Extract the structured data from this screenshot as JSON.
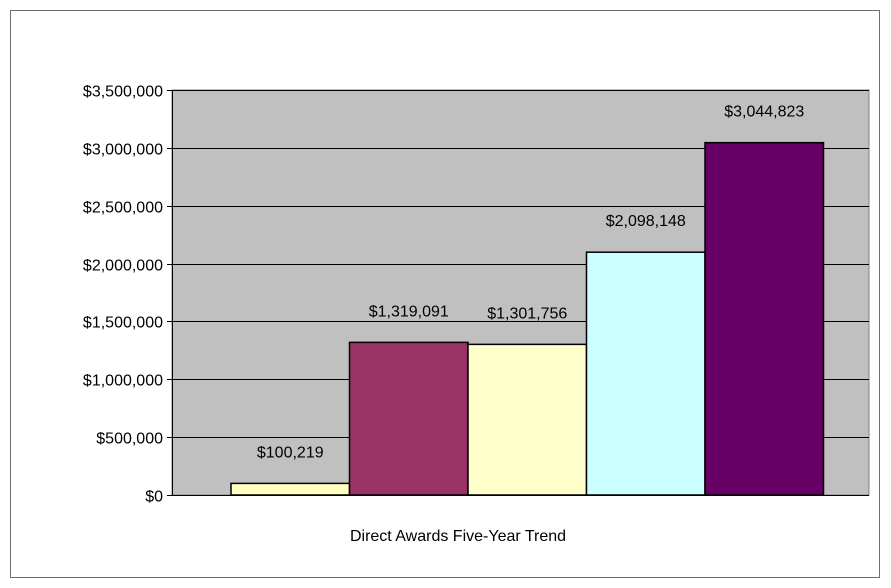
{
  "chart_data": {
    "type": "bar",
    "title": "",
    "xlabel": "Direct Awards Five-Year Trend",
    "ylabel": "",
    "categories": [
      "",
      "",
      "",
      "",
      ""
    ],
    "values": [
      100219,
      1319091,
      1301756,
      2098148,
      3044823
    ],
    "data_labels": [
      "$100,219",
      "$1,319,091",
      "$1,301,756",
      "$2,098,148",
      "$3,044,823"
    ],
    "bar_colors": [
      "#FFFFC0",
      "#993366",
      "#FFFFCC",
      "#CCFFFF",
      "#660066"
    ],
    "ylim": [
      0,
      3500000
    ],
    "yticks": [
      0,
      500000,
      1000000,
      1500000,
      2000000,
      2500000,
      3000000,
      3500000
    ],
    "ytick_labels": [
      "$0",
      "$500,000",
      "$1,000,000",
      "$1,500,000",
      "$2,000,000",
      "$2,500,000",
      "$3,000,000",
      "$3,500,000"
    ],
    "plot_background": "#C0C0C0",
    "grid": true,
    "legend": "none"
  }
}
